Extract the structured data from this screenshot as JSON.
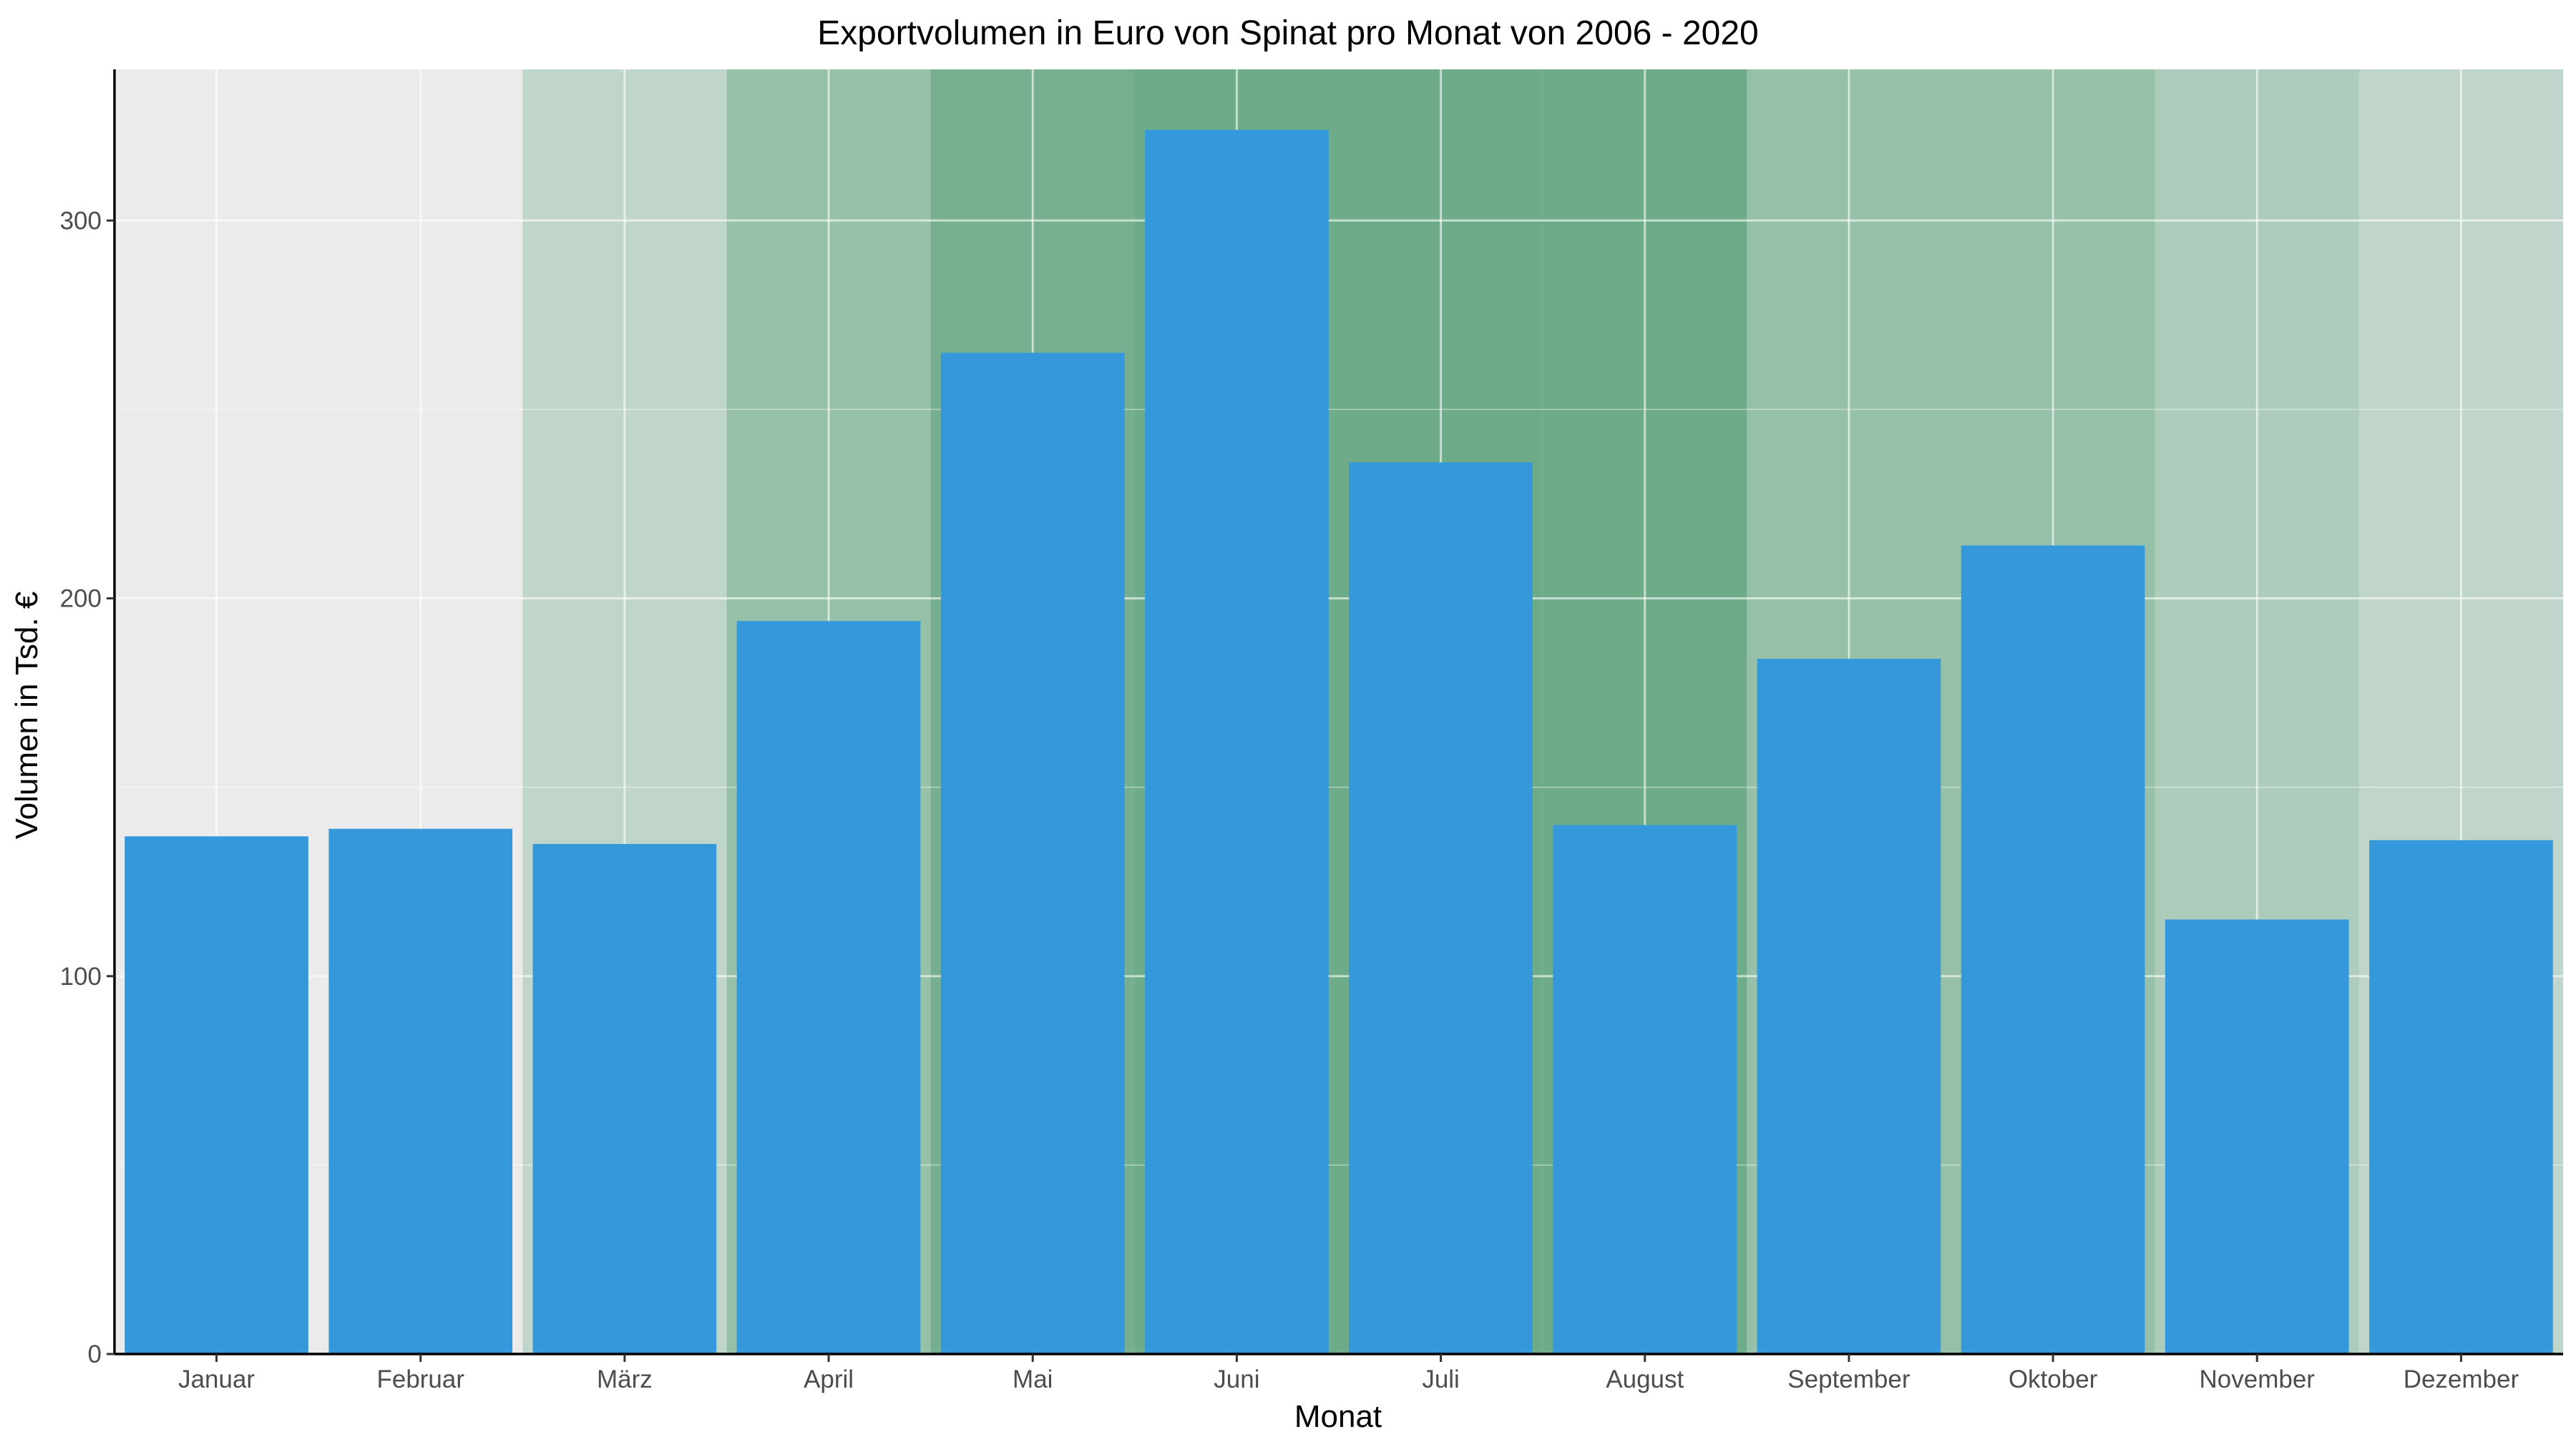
{
  "chart_data": {
    "type": "bar",
    "title": "Exportvolumen in Euro von Spinat pro Monat von 2006 - 2020",
    "xlabel": "Monat",
    "ylabel": "Volumen in Tsd. €",
    "categories": [
      "Januar",
      "Februar",
      "März",
      "April",
      "Mai",
      "Juni",
      "Juli",
      "August",
      "September",
      "Oktober",
      "November",
      "Dezember"
    ],
    "values": [
      137,
      139,
      135,
      194,
      265,
      324,
      236,
      140,
      184,
      214,
      115,
      136
    ],
    "ylim": [
      0,
      340
    ],
    "yticks": [
      0,
      100,
      200,
      300
    ],
    "grid": true,
    "legend": "none",
    "season_intensity": [
      0,
      0,
      0.22,
      0.45,
      0.62,
      0.66,
      0.66,
      0.66,
      0.45,
      0.45,
      0.32,
      0.22
    ],
    "colors": {
      "bar": "#3498db",
      "panel_background": "#ebebeb",
      "season_shading": "#2e8b57",
      "grid_major": "#ffffff",
      "axis_line": "#000000",
      "tick_label": "#4d4d4d"
    }
  }
}
